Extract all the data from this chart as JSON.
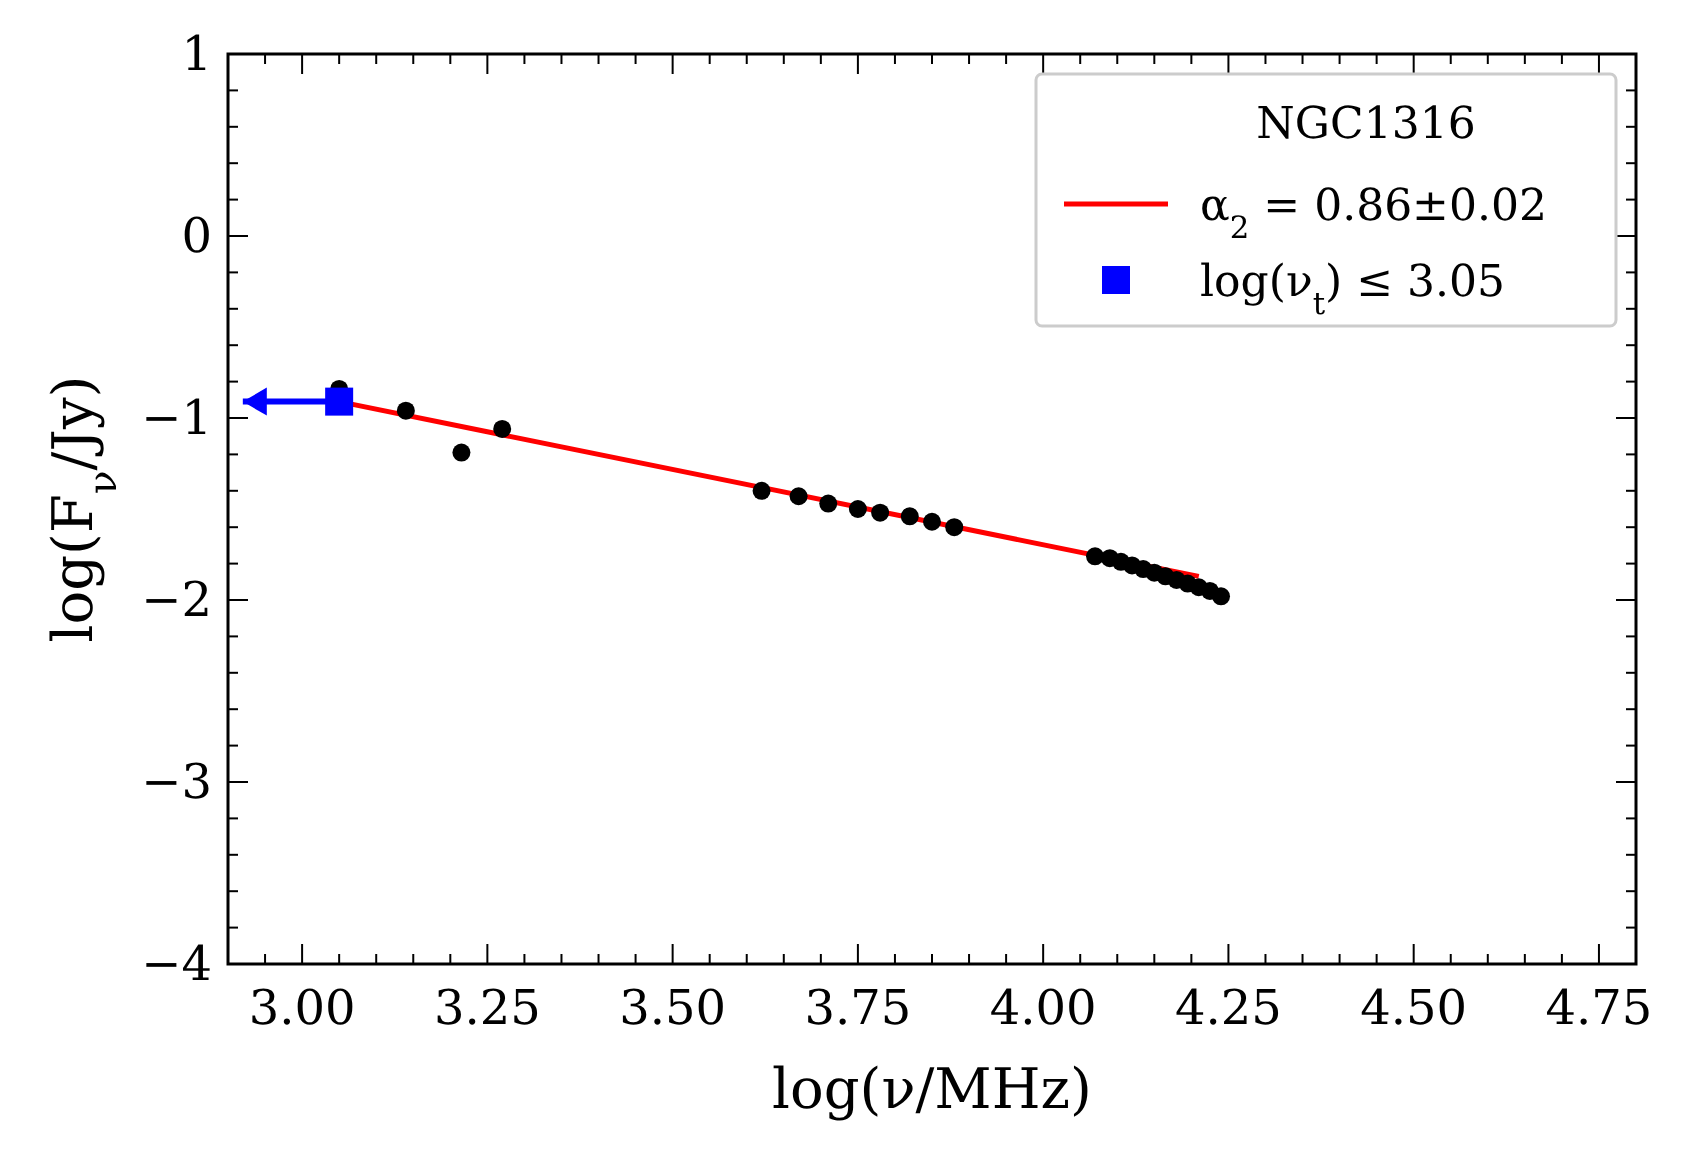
{
  "chart_data": {
    "type": "scatter",
    "xlabel": "log(ν/MHz)",
    "ylabel": "log(F$_{ν}$/Jy)",
    "legend_title": "NGC1316",
    "legend": "top right",
    "grid": false,
    "xlim": [
      2.9,
      4.8
    ],
    "ylim": [
      -4,
      1
    ],
    "xticks": [
      {
        "value": 2.95,
        "label": null
      },
      {
        "value": 3.0,
        "label": "3.00"
      },
      {
        "value": 3.05,
        "label": null
      },
      {
        "value": 3.1,
        "label": null
      },
      {
        "value": 3.15,
        "label": null
      },
      {
        "value": 3.2,
        "label": null
      },
      {
        "value": 3.25,
        "label": "3.25"
      },
      {
        "value": 3.3,
        "label": null
      },
      {
        "value": 3.35,
        "label": null
      },
      {
        "value": 3.4,
        "label": null
      },
      {
        "value": 3.45,
        "label": null
      },
      {
        "value": 3.5,
        "label": "3.50"
      },
      {
        "value": 3.55,
        "label": null
      },
      {
        "value": 3.6,
        "label": null
      },
      {
        "value": 3.65,
        "label": null
      },
      {
        "value": 3.7,
        "label": null
      },
      {
        "value": 3.75,
        "label": "3.75"
      },
      {
        "value": 3.8,
        "label": null
      },
      {
        "value": 3.85,
        "label": null
      },
      {
        "value": 3.9,
        "label": null
      },
      {
        "value": 3.95,
        "label": null
      },
      {
        "value": 4.0,
        "label": "4.00"
      },
      {
        "value": 4.05,
        "label": null
      },
      {
        "value": 4.1,
        "label": null
      },
      {
        "value": 4.15,
        "label": null
      },
      {
        "value": 4.2,
        "label": null
      },
      {
        "value": 4.25,
        "label": "4.25"
      },
      {
        "value": 4.3,
        "label": null
      },
      {
        "value": 4.35,
        "label": null
      },
      {
        "value": 4.4,
        "label": null
      },
      {
        "value": 4.45,
        "label": null
      },
      {
        "value": 4.5,
        "label": "4.50"
      },
      {
        "value": 4.55,
        "label": null
      },
      {
        "value": 4.6,
        "label": null
      },
      {
        "value": 4.65,
        "label": null
      },
      {
        "value": 4.7,
        "label": null
      },
      {
        "value": 4.75,
        "label": "4.75"
      }
    ],
    "yticks": [
      {
        "value": -4,
        "label": "−4"
      },
      {
        "value": -3.8,
        "label": null
      },
      {
        "value": -3.6,
        "label": null
      },
      {
        "value": -3.4,
        "label": null
      },
      {
        "value": -3.2,
        "label": null
      },
      {
        "value": -3,
        "label": "−3"
      },
      {
        "value": -2.8,
        "label": null
      },
      {
        "value": -2.6,
        "label": null
      },
      {
        "value": -2.4,
        "label": null
      },
      {
        "value": -2.2,
        "label": null
      },
      {
        "value": -2,
        "label": "−2"
      },
      {
        "value": -1.8,
        "label": null
      },
      {
        "value": -1.6,
        "label": null
      },
      {
        "value": -1.4,
        "label": null
      },
      {
        "value": -1.2,
        "label": null
      },
      {
        "value": -1,
        "label": "−1"
      },
      {
        "value": -0.8,
        "label": null
      },
      {
        "value": -0.6,
        "label": null
      },
      {
        "value": -0.4,
        "label": null
      },
      {
        "value": -0.2,
        "label": null
      },
      {
        "value": 0,
        "label": "0"
      },
      {
        "value": 0.2,
        "label": null
      },
      {
        "value": 0.4,
        "label": null
      },
      {
        "value": 0.6,
        "label": null
      },
      {
        "value": 0.8,
        "label": null
      },
      {
        "value": 1,
        "label": "1"
      }
    ],
    "series": [
      {
        "marker": "circle",
        "color": "#000000",
        "x": [
          3.05,
          3.14,
          3.215,
          3.27,
          3.62,
          3.67,
          3.71,
          3.75,
          3.78,
          3.82,
          3.85,
          3.88,
          4.07,
          4.09,
          4.105,
          4.12,
          4.135,
          4.15,
          4.165,
          4.18,
          4.195,
          4.21,
          4.225,
          4.24
        ],
        "values": [
          -0.84,
          -0.96,
          -1.19,
          -1.06,
          -1.4,
          -1.43,
          -1.47,
          -1.5,
          -1.52,
          -1.54,
          -1.57,
          -1.6,
          -1.76,
          -1.77,
          -1.79,
          -1.81,
          -1.83,
          -1.85,
          -1.87,
          -1.89,
          -1.91,
          -1.93,
          -1.95,
          -1.98
        ]
      },
      {
        "type": "line",
        "name": "α$_{2}$ = 0.86±0.02",
        "color": "#ff0000",
        "line_style": "solid",
        "marker": "none",
        "x": [
          3.05,
          4.21
        ],
        "values": [
          -0.91,
          -1.87
        ]
      },
      {
        "name": "log(ν$_{t}$) ≤ 3.05",
        "marker": "square",
        "color": "#0000ff",
        "x": [
          3.05
        ],
        "values": [
          -0.91
        ],
        "xerrors": [
          [
            2.92,
            3.05
          ]
        ]
      }
    ]
  }
}
